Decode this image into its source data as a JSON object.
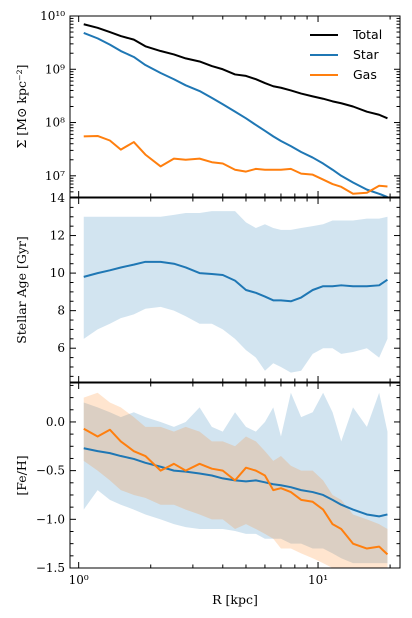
{
  "chart_data": [
    {
      "type": "line",
      "panel": "top",
      "ylabel": "Σ [M⊙ kpc⁻²]",
      "yscale": "log",
      "ylim": [
        4000000,
        10000000000
      ],
      "xscale": "log",
      "xlim": [
        0.92,
        22
      ],
      "ytick_labels": [
        {
          "value": 10000000,
          "label": "10⁷"
        },
        {
          "value": 100000000,
          "label": "10⁸"
        },
        {
          "value": 1000000000,
          "label": "10⁹"
        },
        {
          "value": 10000000000,
          "label": "10¹⁰"
        }
      ],
      "legend": {
        "placement": "top-right",
        "entries": [
          "Total",
          "Star",
          "Gas"
        ]
      },
      "series": [
        {
          "name": "Total",
          "color": "#000000",
          "x": [
            1.05,
            1.2,
            1.35,
            1.5,
            1.7,
            1.9,
            2.2,
            2.5,
            2.8,
            3.2,
            3.6,
            4.0,
            4.5,
            5.0,
            5.5,
            6.0,
            6.5,
            7.0,
            7.7,
            8.5,
            9.5,
            10.5,
            11.5,
            12.5,
            14,
            16,
            18,
            19.5
          ],
          "y": [
            7000000000.0,
            6000000000.0,
            5000000000.0,
            4200000000.0,
            3600000000.0,
            2700000000.0,
            2200000000.0,
            1900000000.0,
            1600000000.0,
            1400000000.0,
            1150000000.0,
            1000000000.0,
            800000000.0,
            750000000.0,
            650000000.0,
            550000000.0,
            480000000.0,
            450000000.0,
            400000000.0,
            350000000.0,
            310000000.0,
            280000000.0,
            250000000.0,
            230000000.0,
            200000000.0,
            160000000.0,
            140000000.0,
            120000000.0
          ]
        },
        {
          "name": "Star",
          "color": "#1f77b4",
          "x": [
            1.05,
            1.2,
            1.35,
            1.5,
            1.7,
            1.9,
            2.2,
            2.5,
            2.8,
            3.2,
            3.6,
            4.0,
            4.5,
            5.0,
            5.5,
            6.0,
            6.5,
            7.0,
            7.7,
            8.5,
            9.5,
            10.5,
            11.5,
            12.5,
            14,
            16,
            18,
            19.5
          ],
          "y": [
            4800000000.0,
            3800000000.0,
            2900000000.0,
            2200000000.0,
            1700000000.0,
            1200000000.0,
            850000000.0,
            650000000.0,
            500000000.0,
            390000000.0,
            290000000.0,
            220000000.0,
            160000000.0,
            120000000.0,
            90000000.0,
            70000000.0,
            55000000.0,
            45000000.0,
            36000000.0,
            28000000.0,
            22000000.0,
            17000000.0,
            13000000.0,
            10000000.0,
            7500000.0,
            5500000.0,
            4600000.0,
            4000000.0
          ]
        },
        {
          "name": "Gas",
          "color": "#ff7f0e",
          "x": [
            1.05,
            1.2,
            1.35,
            1.5,
            1.7,
            1.9,
            2.2,
            2.5,
            2.8,
            3.2,
            3.6,
            4.0,
            4.5,
            5.0,
            5.5,
            6.0,
            6.5,
            7.0,
            7.7,
            8.5,
            9.5,
            10.5,
            11.5,
            12.5,
            14,
            16,
            18,
            19.5
          ],
          "y": [
            55000000.0,
            56000000.0,
            46000000.0,
            31000000.0,
            43000000.0,
            25000000.0,
            15000000.0,
            21000000.0,
            20000000.0,
            21000000.0,
            18000000.0,
            17000000.0,
            13000000.0,
            12000000.0,
            13500000.0,
            13000000.0,
            13000000.0,
            13000000.0,
            13500000.0,
            11000000.0,
            10500000.0,
            8500000.0,
            7000000.0,
            6200000.0,
            4600000.0,
            4800000.0,
            6500000.0,
            6300000.0
          ]
        }
      ]
    },
    {
      "type": "area",
      "panel": "middle",
      "ylabel": "Stellar Age [Gyr]",
      "ylim": [
        4.2,
        14
      ],
      "ytick_labels": [
        {
          "value": 6,
          "label": "6"
        },
        {
          "value": 8,
          "label": "8"
        },
        {
          "value": 10,
          "label": "10"
        },
        {
          "value": 12,
          "label": "12"
        },
        {
          "value": 14,
          "label": "14"
        }
      ],
      "series": [
        {
          "name": "",
          "color": "#1f77b4",
          "band_color": "#1f77b4",
          "x": [
            1.05,
            1.2,
            1.35,
            1.5,
            1.7,
            1.9,
            2.2,
            2.5,
            2.8,
            3.2,
            3.6,
            4.0,
            4.5,
            5.0,
            5.5,
            6.0,
            6.5,
            7.0,
            7.7,
            8.5,
            9.5,
            10.5,
            11.5,
            12.5,
            14,
            16,
            18,
            19.5
          ],
          "y": [
            9.8,
            10.0,
            10.15,
            10.3,
            10.45,
            10.6,
            10.6,
            10.5,
            10.3,
            10.0,
            9.95,
            9.9,
            9.6,
            9.1,
            8.95,
            8.75,
            8.55,
            8.55,
            8.5,
            8.7,
            9.1,
            9.3,
            9.3,
            9.35,
            9.3,
            9.3,
            9.35,
            9.65
          ],
          "lower": [
            6.5,
            7.0,
            7.3,
            7.6,
            7.8,
            8.1,
            8.2,
            8.0,
            7.7,
            7.3,
            7.3,
            7.0,
            6.5,
            5.9,
            5.5,
            4.8,
            5.2,
            5.0,
            4.7,
            4.8,
            5.7,
            6.0,
            6.0,
            5.7,
            5.8,
            6.0,
            5.5,
            6.5
          ],
          "upper": [
            13.0,
            13.0,
            13.0,
            13.0,
            13.0,
            13.0,
            13.0,
            13.1,
            13.2,
            13.2,
            13.3,
            13.3,
            13.3,
            12.7,
            12.4,
            12.6,
            12.4,
            12.3,
            12.3,
            12.4,
            12.5,
            12.6,
            12.8,
            12.8,
            12.8,
            12.9,
            12.9,
            13.0
          ]
        }
      ]
    },
    {
      "type": "area",
      "panel": "bottom",
      "ylabel": "[Fe/H]",
      "ylim": [
        -1.5,
        0.4
      ],
      "xlabel": "R [kpc]",
      "ytick_labels": [
        {
          "value": -1.5,
          "label": "−1.5"
        },
        {
          "value": -1.0,
          "label": "−1.0"
        },
        {
          "value": -0.5,
          "label": "−0.5"
        },
        {
          "value": 0.0,
          "label": "0.0"
        }
      ],
      "xtick_labels": [
        {
          "value": 1,
          "label": "10⁰"
        },
        {
          "value": 10,
          "label": "10¹"
        }
      ],
      "series": [
        {
          "name": "Star",
          "color": "#1f77b4",
          "band_color": "#1f77b4",
          "x": [
            1.05,
            1.2,
            1.35,
            1.5,
            1.7,
            1.9,
            2.2,
            2.5,
            2.8,
            3.2,
            3.6,
            4.0,
            4.5,
            5.0,
            5.5,
            6.0,
            6.5,
            7.0,
            7.7,
            8.5,
            9.5,
            10.5,
            11.5,
            12.5,
            14,
            16,
            18,
            19.5
          ],
          "y": [
            -0.27,
            -0.3,
            -0.32,
            -0.35,
            -0.38,
            -0.42,
            -0.46,
            -0.5,
            -0.51,
            -0.53,
            -0.55,
            -0.58,
            -0.6,
            -0.61,
            -0.6,
            -0.62,
            -0.64,
            -0.65,
            -0.67,
            -0.7,
            -0.72,
            -0.75,
            -0.8,
            -0.85,
            -0.9,
            -0.95,
            -0.97,
            -0.95
          ],
          "lower": [
            -0.9,
            -0.7,
            -0.8,
            -0.85,
            -0.9,
            -0.95,
            -1.0,
            -1.05,
            -1.08,
            -1.1,
            -1.1,
            -1.1,
            -1.12,
            -1.15,
            -1.15,
            -1.2,
            -1.2,
            -1.2,
            -1.25,
            -1.25,
            -1.3,
            -1.3,
            -1.35,
            -1.4,
            -1.45,
            -1.45,
            -1.45,
            -1.45
          ],
          "upper": [
            0.2,
            0.15,
            0.1,
            0.05,
            0.1,
            0.05,
            0.0,
            -0.05,
            0.0,
            0.15,
            -0.05,
            -0.1,
            0.1,
            -0.05,
            -0.1,
            0.0,
            0.15,
            -0.15,
            0.3,
            0.05,
            0.1,
            0.3,
            0.1,
            -0.2,
            0.15,
            -0.05,
            0.3,
            -0.1
          ]
        },
        {
          "name": "Gas",
          "color": "#ff7f0e",
          "band_color": "#ff7f0e",
          "x": [
            1.05,
            1.2,
            1.35,
            1.5,
            1.7,
            1.9,
            2.2,
            2.5,
            2.8,
            3.2,
            3.6,
            4.0,
            4.5,
            5.0,
            5.5,
            6.0,
            6.5,
            7.0,
            7.7,
            8.5,
            9.5,
            10.5,
            11.5,
            12.5,
            14,
            16,
            18,
            19.5
          ],
          "y": [
            -0.07,
            -0.15,
            -0.08,
            -0.2,
            -0.3,
            -0.35,
            -0.5,
            -0.43,
            -0.5,
            -0.43,
            -0.48,
            -0.5,
            -0.6,
            -0.47,
            -0.5,
            -0.55,
            -0.7,
            -0.68,
            -0.72,
            -0.8,
            -0.82,
            -0.9,
            -1.05,
            -1.1,
            -1.25,
            -1.3,
            -1.28,
            -1.36
          ],
          "lower": [
            -0.4,
            -0.5,
            -0.6,
            -0.7,
            -0.75,
            -0.78,
            -0.85,
            -0.85,
            -0.9,
            -0.95,
            -1.0,
            -1.0,
            -1.1,
            -1.05,
            -1.1,
            -1.15,
            -1.2,
            -1.3,
            -1.3,
            -1.35,
            -1.4,
            -1.45,
            -1.5,
            -1.5,
            -1.5,
            -1.5,
            -1.5,
            -1.5
          ],
          "upper": [
            0.25,
            0.3,
            0.2,
            0.15,
            0.05,
            -0.05,
            -0.05,
            -0.1,
            -0.05,
            -0.1,
            -0.2,
            -0.2,
            -0.25,
            -0.15,
            -0.2,
            -0.3,
            -0.4,
            -0.35,
            -0.45,
            -0.5,
            -0.5,
            -0.6,
            -0.75,
            -0.8,
            -0.95,
            -1.0,
            -1.05,
            -1.1
          ]
        }
      ]
    }
  ]
}
